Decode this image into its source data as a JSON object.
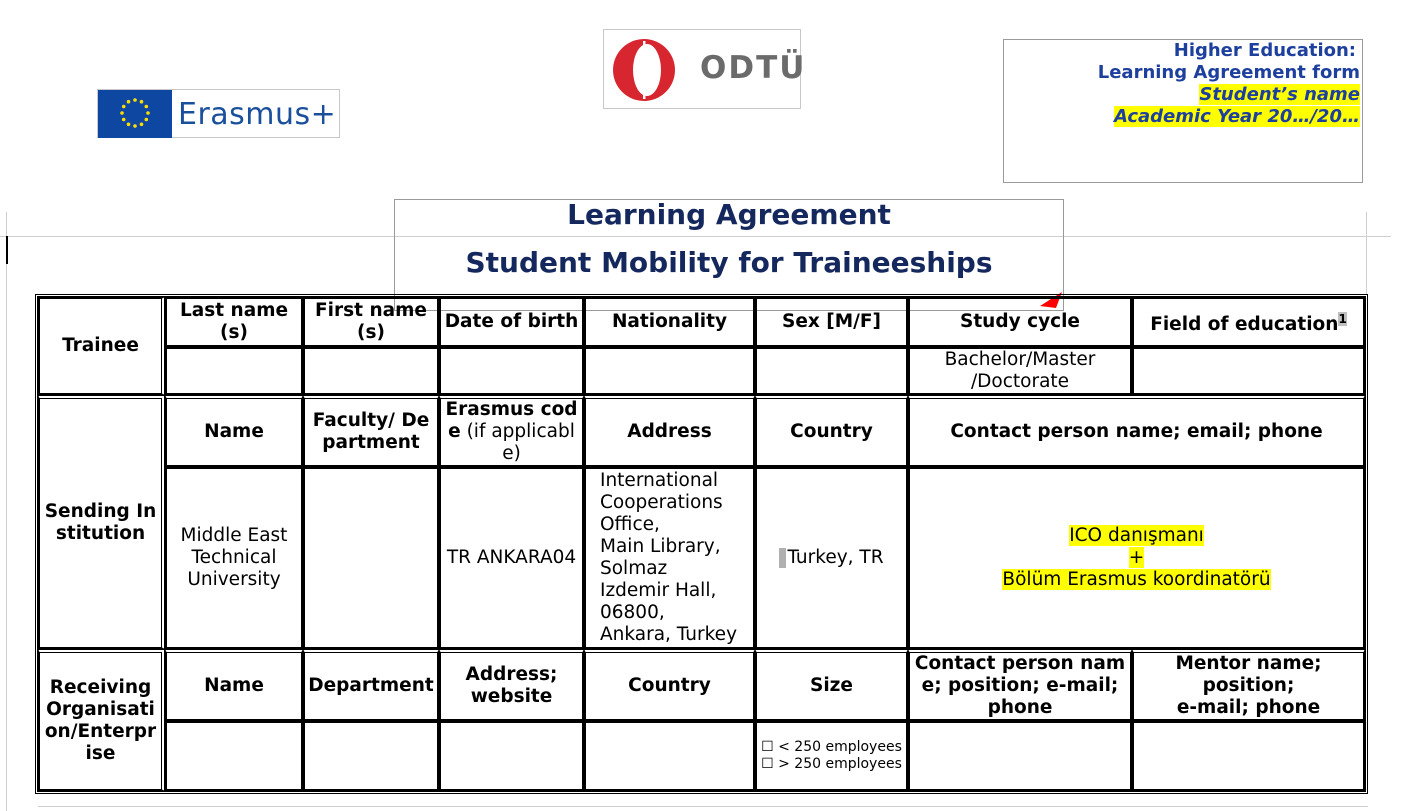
{
  "logos": {
    "erasmus_text": "Erasmus+",
    "odtu_text": "ODTÜ"
  },
  "header": {
    "line1": "Higher Education:",
    "line2": "Learning Agreement form",
    "line3": "Student’s name",
    "line4": "Academic Year 20…/20…"
  },
  "title": {
    "line1": "Learning Agreement",
    "line2": "Student Mobility for Traineeships"
  },
  "trainee": {
    "section": "Trainee",
    "headers": [
      "Last name(s)",
      "First name(s)",
      "Date of birth",
      "Nationality",
      "Sex [M/F]",
      "Study cycle",
      "Field of education"
    ],
    "footnote_mark": "1",
    "values": [
      "",
      "",
      "",
      "",
      "",
      "Bachelor/Master /Doctorate",
      ""
    ]
  },
  "sending": {
    "section": "Sending Institution",
    "headers": {
      "name": "Name",
      "faculty": "Faculty/ Department",
      "erasmus_code": "Erasmus code",
      "erasmus_code_note": "(if applicable)",
      "address": "Address",
      "country": "Country",
      "contact": "Contact person name; email; phone"
    },
    "values": {
      "name": "Middle East Technical University",
      "faculty": "",
      "erasmus_code": "TR ANKARA04",
      "address_lines": [
        "International",
        "Cooperations",
        "Office,",
        "Main Library,",
        "Solmaz",
        "Izdemir Hall,",
        "06800,",
        "Ankara, Turkey"
      ],
      "country": "Turkey, TR",
      "contact_line1": "ICO danışmanı",
      "contact_line2": "+",
      "contact_line3": "Bölüm Erasmus koordinatörü"
    }
  },
  "receiving": {
    "section": "Receiving Organisation/Enterprise",
    "headers": {
      "name": "Name",
      "department": "Department",
      "address": "Address; website",
      "country": "Country",
      "size": "Size",
      "contact": "Contact person name; position; e-mail; phone",
      "mentor_line1": "Mentor name; position;",
      "mentor_line2": "e-mail; phone"
    },
    "size_options": [
      "☐ < 250 employees",
      "☐ > 250 employees"
    ]
  },
  "colors": {
    "header_blue": "#1d3f9d",
    "title_navy": "#14285e",
    "highlight": "#ffff00",
    "odtu_red": "#d7262f",
    "eu_blue": "#0e47a1",
    "arrow_red": "#ff0000"
  }
}
